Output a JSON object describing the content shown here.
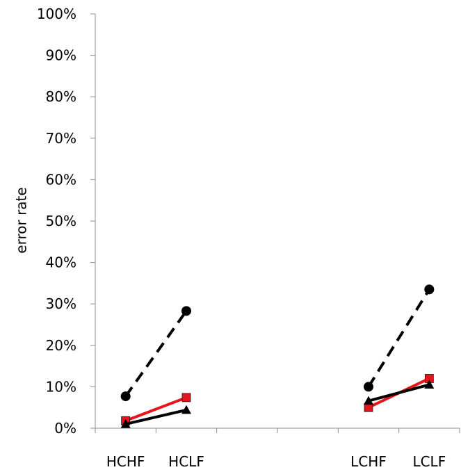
{
  "chart_data": {
    "type": "line",
    "title": "",
    "xlabel": "",
    "ylabel": "error rate",
    "ylim": [
      0,
      100
    ],
    "y_ticks": [
      "0%",
      "10%",
      "20%",
      "30%",
      "40%",
      "50%",
      "60%",
      "70%",
      "80%",
      "90%",
      "100%"
    ],
    "categories": [
      "HCHF",
      "HCLF",
      "",
      "",
      "LCHF",
      "LCLF"
    ],
    "grid": false,
    "series": [
      {
        "color": "#000000",
        "marker": "circle",
        "line_style": "dashed",
        "segments": [
          [
            {
              "x": "HCHF",
              "y": 7.7
            },
            {
              "x": "HCLF",
              "y": 28.3
            }
          ],
          [
            {
              "x": "LCHF",
              "y": 10.0
            },
            {
              "x": "LCLF",
              "y": 33.5
            }
          ]
        ]
      },
      {
        "color": "#e8141b",
        "marker": "square",
        "line_style": "solid",
        "segments": [
          [
            {
              "x": "HCHF",
              "y": 1.8
            },
            {
              "x": "HCLF",
              "y": 7.4
            }
          ],
          [
            {
              "x": "LCHF",
              "y": 5.0
            },
            {
              "x": "LCLF",
              "y": 12.0
            }
          ]
        ]
      },
      {
        "color": "#000000",
        "marker": "triangle",
        "line_style": "solid",
        "segments": [
          [
            {
              "x": "HCHF",
              "y": 1.0
            },
            {
              "x": "HCLF",
              "y": 4.4
            }
          ],
          [
            {
              "x": "LCHF",
              "y": 6.6
            },
            {
              "x": "LCLF",
              "y": 10.5
            }
          ]
        ]
      }
    ]
  }
}
